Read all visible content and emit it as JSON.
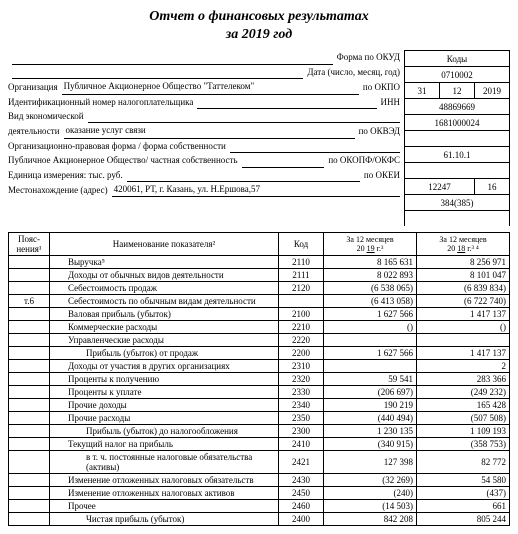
{
  "title_line1": "Отчет о финансовых результатах",
  "title_line2": "за 2019 год",
  "codes_header": "Коды",
  "header_rows": [
    {
      "label": "",
      "value": "",
      "suffix": "Форма по ОКУД",
      "code_cells": [
        "0710002"
      ]
    },
    {
      "label": "",
      "value": "",
      "suffix": "Дата (число, месяц, год)",
      "code_cells": [
        "31",
        "12",
        "2019"
      ]
    },
    {
      "label": "Организация",
      "value": "Публичное Акционерное Общество \"Таттелеком\"",
      "suffix": "по ОКПО",
      "code_cells": [
        "48869669"
      ]
    },
    {
      "label": "Идентификационный номер налогоплательщика",
      "value": "",
      "suffix": "ИНН",
      "code_cells": [
        "1681000024"
      ]
    },
    {
      "label": "Вид экономической",
      "value": "",
      "suffix": "",
      "code_cells": null
    },
    {
      "label": "деятельности",
      "value": "оказание услуг связи",
      "suffix": "по ОКВЭД",
      "code_cells": [
        "61.10.1"
      ]
    },
    {
      "label": "Организационно-правовая форма / форма собственности",
      "value": "",
      "suffix": "",
      "code_cells": null
    },
    {
      "label": "Публичное Акционерное Общество/ частная собственность",
      "value": "",
      "suffix": "по ОКОПФ/ОКФС",
      "code_cells": [
        "12247",
        "16"
      ]
    },
    {
      "label": "Единица измерения: тыс. руб.",
      "value": "",
      "suffix": "по ОКЕИ",
      "code_cells": [
        "384(385)"
      ]
    },
    {
      "label": "Местонахождение (адрес)",
      "value": "420061, РТ, г. Казань, ул. Н.Ершова,57",
      "suffix": "",
      "code_cells": null
    }
  ],
  "table_headers": {
    "expl": "Пояс-нения¹",
    "name": "Наименование показателя²",
    "code": "Код",
    "period_tpl_top": "За 12 месяцев",
    "period_tpl_bot_prefix": "20",
    "period_tpl_bot_suffix": "г.³",
    "year1": "19",
    "year2": "18"
  },
  "rows": [
    {
      "expl": "",
      "name": "Выручка⁵",
      "indent": 1,
      "code": "2110",
      "v1": "8 165 631",
      "v2": "8 256 971"
    },
    {
      "expl": "",
      "name": "Доходы от обычных видов деятельности",
      "indent": 1,
      "code": "2111",
      "v1": "8 022 893",
      "v2": "8 101 047"
    },
    {
      "expl": "",
      "name": "Себестоимость продаж",
      "indent": 1,
      "code": "2120",
      "v1": "(6 538 065)",
      "v2": "(6 839 834)"
    },
    {
      "expl": "т.6",
      "name": "Себестоимость по обычным видам деятельности",
      "indent": 1,
      "code": "",
      "v1": "(6 413 058)",
      "v2": "(6 722 740)"
    },
    {
      "expl": "",
      "name": "Валовая прибыль (убыток)",
      "indent": 1,
      "code": "2100",
      "v1": "1 627 566",
      "v2": "1 417 137"
    },
    {
      "expl": "",
      "name": "Коммерческие расходы",
      "indent": 1,
      "code": "2210",
      "v1": "()",
      "v2": "()"
    },
    {
      "expl": "",
      "name": "Управленческие расходы",
      "indent": 1,
      "code": "2220",
      "v1": "",
      "v2": ""
    },
    {
      "expl": "",
      "name": "Прибыль (убыток) от продаж",
      "indent": 2,
      "code": "2200",
      "v1": "1 627 566",
      "v2": "1 417 137"
    },
    {
      "expl": "",
      "name": "Доходы от участия в других организациях",
      "indent": 1,
      "code": "2310",
      "v1": "",
      "v2": "2"
    },
    {
      "expl": "",
      "name": "Проценты к получению",
      "indent": 1,
      "code": "2320",
      "v1": "59 541",
      "v2": "283 366"
    },
    {
      "expl": "",
      "name": "Проценты к уплате",
      "indent": 1,
      "code": "2330",
      "v1": "(206 697)",
      "v2": "(249 232)"
    },
    {
      "expl": "",
      "name": "Прочие доходы",
      "indent": 1,
      "code": "2340",
      "v1": "190 219",
      "v2": "165 428"
    },
    {
      "expl": "",
      "name": "Прочие расходы",
      "indent": 1,
      "code": "2350",
      "v1": "(440 494)",
      "v2": "(507 508)"
    },
    {
      "expl": "",
      "name": "Прибыль (убыток) до налогообложения",
      "indent": 2,
      "code": "2300",
      "v1": "1 230 135",
      "v2": "1 109 193"
    },
    {
      "expl": "",
      "name": "Текущий налог на прибыль",
      "indent": 1,
      "code": "2410",
      "v1": "(340 915)",
      "v2": "(358 753)"
    },
    {
      "expl": "",
      "name": "в т. ч. постоянные налоговые обязательства (активы)",
      "indent": 2,
      "code": "2421",
      "v1": "127 398",
      "v2": "82 772"
    },
    {
      "expl": "",
      "name": "Изменение отложенных налоговых обязательств",
      "indent": 1,
      "code": "2430",
      "v1": "(32 269)",
      "v2": "54 580"
    },
    {
      "expl": "",
      "name": "Изменение отложенных налоговых активов",
      "indent": 1,
      "code": "2450",
      "v1": "(240)",
      "v2": "(437)"
    },
    {
      "expl": "",
      "name": "Прочее",
      "indent": 1,
      "code": "2460",
      "v1": "(14 503)",
      "v2": "661"
    },
    {
      "expl": "",
      "name": "Чистая прибыль (убыток)",
      "indent": 2,
      "code": "2400",
      "v1": "842 208",
      "v2": "805 244"
    }
  ]
}
